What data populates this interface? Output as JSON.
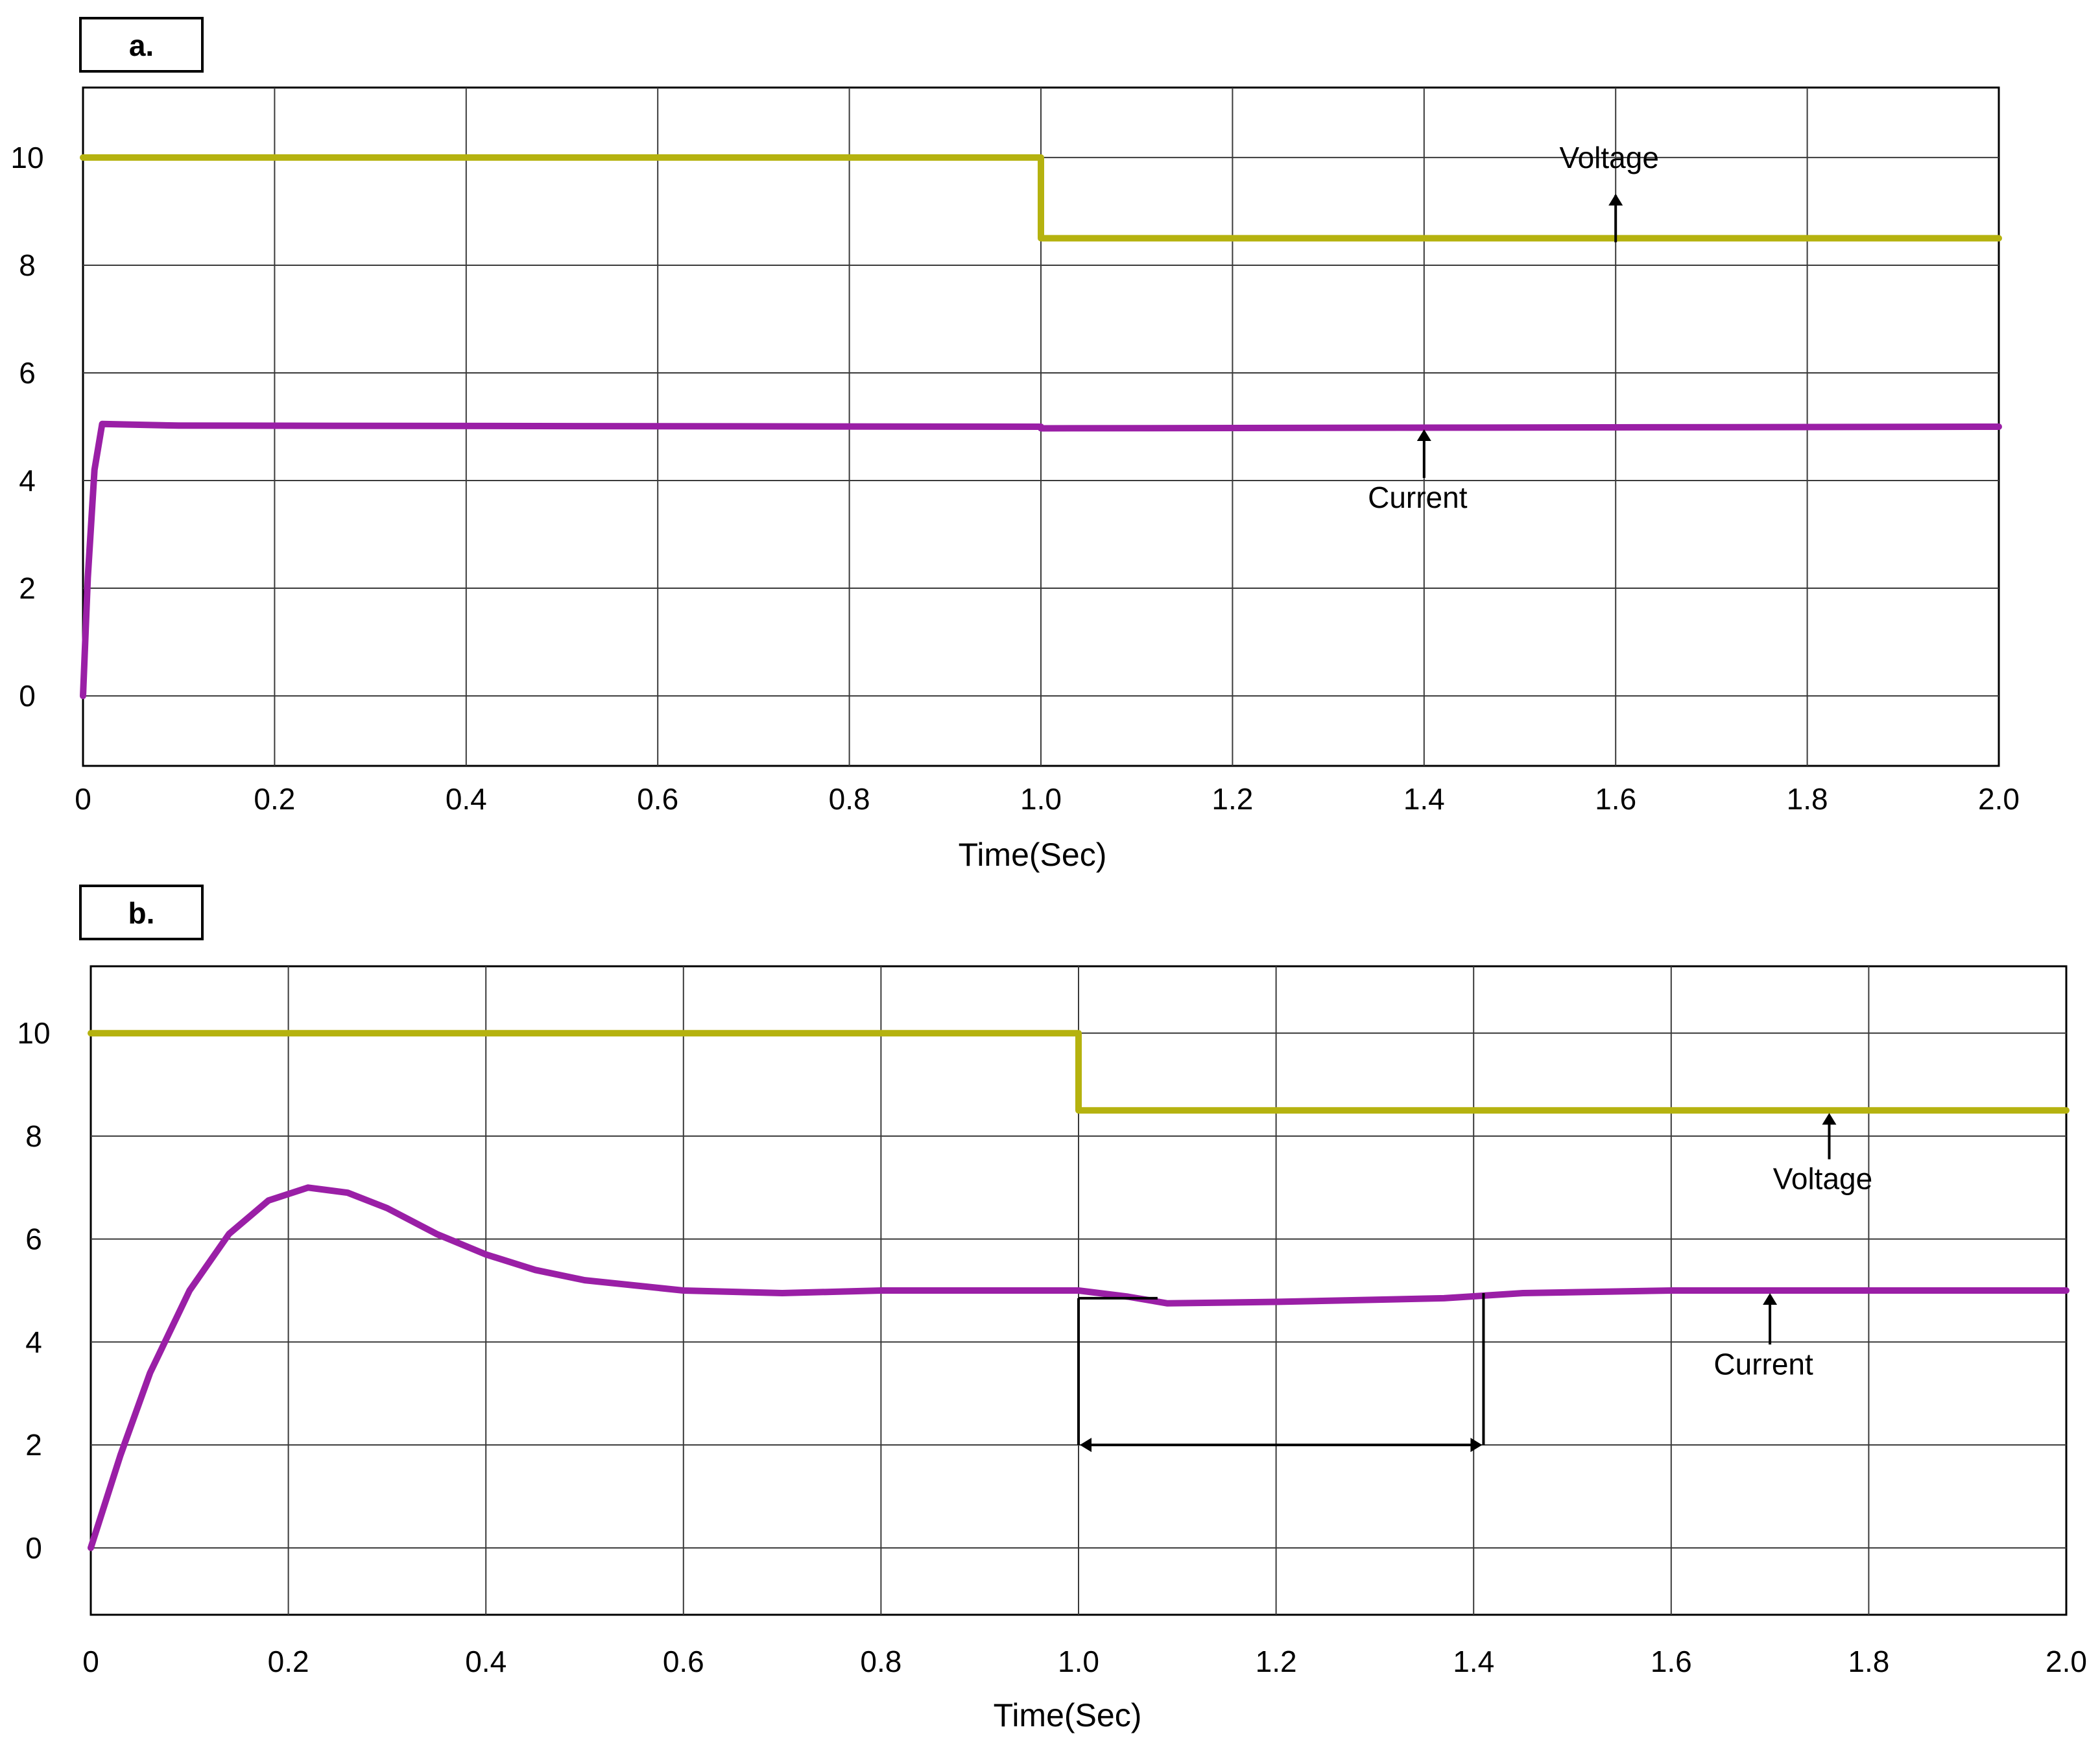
{
  "chart_data": [
    {
      "type": "line",
      "panel_label": "a.",
      "xlabel": "Time(Sec)",
      "ylabel": "",
      "xlim": [
        0,
        2.0
      ],
      "ylim": [
        -1.3,
        11.3
      ],
      "xticks": [
        0,
        0.2,
        0.4,
        0.6,
        0.8,
        1.0,
        1.2,
        1.4,
        1.6,
        1.8,
        2.0
      ],
      "xtick_labels": [
        "0",
        "0.2",
        "0.4",
        "0.6",
        "0.8",
        "1.0",
        "1.2",
        "1.4",
        "1.6",
        "1.8",
        "2.0"
      ],
      "yticks": [
        0,
        2,
        4,
        6,
        8,
        10
      ],
      "ytick_labels": [
        "0",
        "2",
        "4",
        "6",
        "8",
        "10"
      ],
      "grid": true,
      "legend": "none",
      "series": [
        {
          "color": "#b5b20f",
          "x": [
            0,
            1.0,
            1.0,
            2.0
          ],
          "y": [
            10,
            10,
            8.5,
            8.5
          ]
        },
        {
          "color": "#9a1fa6",
          "x": [
            0,
            0.005,
            0.012,
            0.02,
            0.1,
            1.0,
            1.0,
            2.0
          ],
          "y": [
            0,
            2.2,
            4.2,
            5.05,
            5.02,
            5.0,
            4.97,
            5.0
          ]
        }
      ],
      "annotations": [
        {
          "text": "Voltage",
          "x": 1.6,
          "y": 10.0,
          "arrow_to": [
            1.6,
            8.5
          ],
          "label_position": "above"
        },
        {
          "text": "Current",
          "x": 1.4,
          "y": 4.0,
          "arrow_to": [
            1.4,
            5.0
          ],
          "label_position": "below"
        }
      ]
    },
    {
      "type": "line",
      "panel_label": "b.",
      "xlabel": "Time(Sec)",
      "ylabel": "",
      "xlim": [
        0,
        2.0
      ],
      "ylim": [
        -1.3,
        11.3
      ],
      "xticks": [
        0,
        0.2,
        0.4,
        0.6,
        0.8,
        1.0,
        1.2,
        1.4,
        1.6,
        1.8,
        2.0
      ],
      "xtick_labels": [
        "0",
        "0.2",
        "0.4",
        "0.6",
        "0.8",
        "1.0",
        "1.2",
        "1.4",
        "1.6",
        "1.8",
        "2.0"
      ],
      "yticks": [
        0,
        2,
        4,
        6,
        8,
        10
      ],
      "ytick_labels": [
        "0",
        "2",
        "4",
        "6",
        "8",
        "10"
      ],
      "grid": true,
      "legend": "none",
      "series": [
        {
          "color": "#b5b20f",
          "x": [
            0,
            1.0,
            1.0,
            2.0
          ],
          "y": [
            10,
            10,
            8.5,
            8.5
          ]
        },
        {
          "color": "#9a1fa6",
          "x": [
            0,
            0.03,
            0.06,
            0.1,
            0.14,
            0.18,
            0.22,
            0.26,
            0.3,
            0.35,
            0.4,
            0.45,
            0.5,
            0.6,
            0.7,
            0.8,
            1.0,
            1.05,
            1.09,
            1.2,
            1.3,
            1.37,
            1.45,
            1.6,
            1.8,
            2.0
          ],
          "y": [
            0,
            1.8,
            3.4,
            5.0,
            6.1,
            6.75,
            7.0,
            6.9,
            6.6,
            6.1,
            5.7,
            5.4,
            5.2,
            5.0,
            4.95,
            5.0,
            5.0,
            4.88,
            4.75,
            4.78,
            4.82,
            4.85,
            4.95,
            5.0,
            5.0,
            5.0
          ]
        }
      ],
      "annotations": [
        {
          "text": "Voltage",
          "x": 1.76,
          "y": 7.5,
          "arrow_to": [
            1.76,
            8.5
          ],
          "label_position": "below"
        },
        {
          "text": "Current",
          "x": 1.7,
          "y": 3.9,
          "arrow_to": [
            1.7,
            5.0
          ],
          "label_position": "below"
        }
      ],
      "interval_marker": {
        "x_start": 1.0,
        "x_end": 1.41,
        "y": 2.0
      }
    }
  ]
}
